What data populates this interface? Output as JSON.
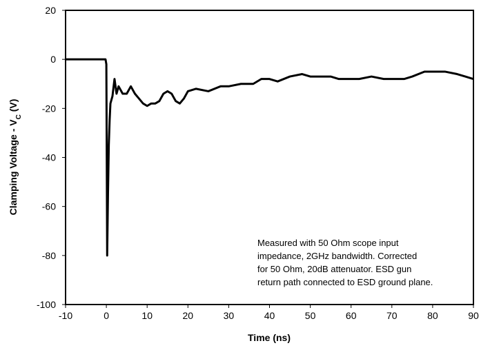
{
  "chart_data": {
    "type": "line",
    "xlabel": "Time (ns)",
    "ylabel": [
      "Clamping Voltage - V",
      "C",
      " (V)"
    ],
    "annotation": [
      "Measured with 50 Ohm scope input",
      "impedance, 2GHz bandwidth. Corrected",
      "for 50 Ohm, 20dB attenuator. ESD gun",
      "return path connected to ESD ground plane."
    ],
    "x": [
      -10,
      -0.2,
      0,
      0.1,
      0.2,
      0.4,
      0.6,
      0.8,
      1,
      1.5,
      2,
      2.5,
      3,
      4,
      5,
      6,
      7,
      8,
      9,
      10,
      11,
      12,
      13,
      14,
      15,
      16,
      17,
      18,
      19,
      20,
      22,
      25,
      28,
      30,
      33,
      36,
      38,
      40,
      42,
      45,
      48,
      50,
      55,
      57,
      60,
      62,
      65,
      68,
      70,
      73,
      75,
      78,
      80,
      83,
      86,
      88,
      90
    ],
    "series": [
      {
        "color": "#000000",
        "values": [
          0,
          0,
          -2,
          -40,
          -80,
          -55,
          -35,
          -25,
          -18,
          -15,
          -8,
          -14,
          -11,
          -14,
          -14,
          -11,
          -14,
          -16,
          -18,
          -19,
          -18,
          -18,
          -17,
          -14,
          -13,
          -14,
          -17,
          -18,
          -16,
          -13,
          -12,
          -13,
          -11,
          -11,
          -10,
          -10,
          -8,
          -8,
          -9,
          -7,
          -6,
          -7,
          -7,
          -8,
          -8,
          -8,
          -7,
          -8,
          -8,
          -8,
          -7,
          -5,
          -5,
          -5,
          -6,
          -7,
          -8
        ]
      }
    ],
    "xlim": [
      -10,
      90
    ],
    "xticks": [
      -10,
      0,
      10,
      20,
      30,
      40,
      50,
      60,
      70,
      80,
      90
    ],
    "ylim": [
      -100,
      20
    ],
    "yticks": [
      -100,
      -80,
      -60,
      -40,
      -20,
      0,
      20
    ],
    "grid": false
  }
}
